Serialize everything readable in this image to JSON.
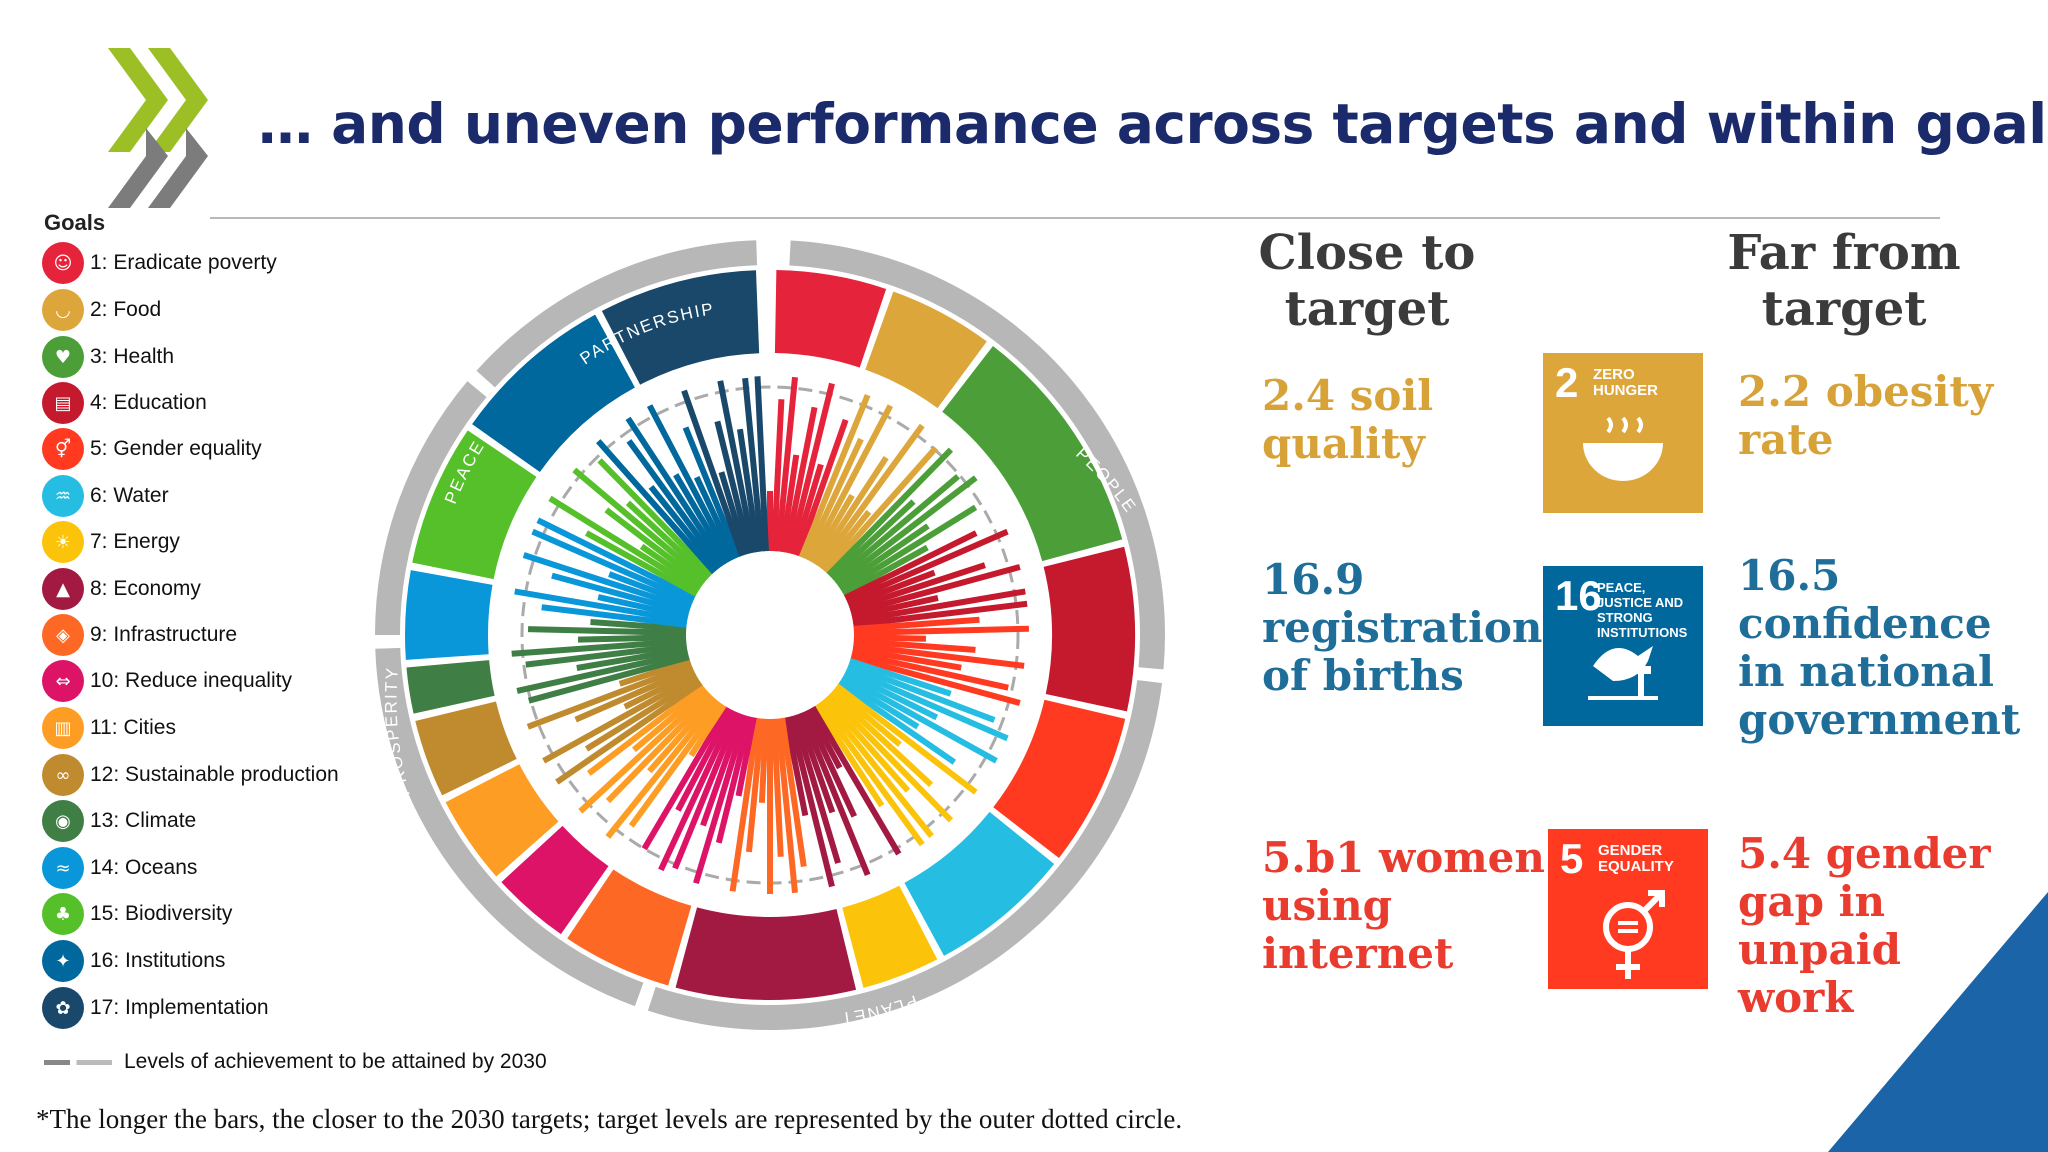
{
  "slide": {
    "title": "… and uneven performance across targets and within goals",
    "footnote": "*The longer the bars, the closer to the 2030 targets; target levels are represented by the outer dotted circle."
  },
  "legend": {
    "title": "Goals",
    "items": [
      {
        "label": "1: Eradicate poverty",
        "color": "#e5243b",
        "icon": "people-icon"
      },
      {
        "label": "2: Food",
        "color": "#dda63a",
        "icon": "bowl-icon"
      },
      {
        "label": "3: Health",
        "color": "#4c9f38",
        "icon": "heartbeat-icon"
      },
      {
        "label": "4: Education",
        "color": "#c5192d",
        "icon": "book-icon"
      },
      {
        "label": "5: Gender equality",
        "color": "#ff3a21",
        "icon": "gender-icon"
      },
      {
        "label": "6: Water",
        "color": "#26bde2",
        "icon": "water-icon"
      },
      {
        "label": "7: Energy",
        "color": "#fcc30b",
        "icon": "sun-icon"
      },
      {
        "label": "8: Economy",
        "color": "#a21942",
        "icon": "growth-chart-icon"
      },
      {
        "label": "9: Infrastructure",
        "color": "#fd6925",
        "icon": "cubes-icon"
      },
      {
        "label": "10: Reduce inequality",
        "color": "#dd1367",
        "icon": "arrows-icon"
      },
      {
        "label": "11: Cities",
        "color": "#fd9d24",
        "icon": "buildings-icon"
      },
      {
        "label": "12: Sustainable production",
        "color": "#bf8b2e",
        "icon": "infinity-icon"
      },
      {
        "label": "13: Climate",
        "color": "#3f7e44",
        "icon": "eye-globe-icon"
      },
      {
        "label": "14: Oceans",
        "color": "#0a97d9",
        "icon": "fish-icon"
      },
      {
        "label": "15: Biodiversity",
        "color": "#56c02b",
        "icon": "tree-icon"
      },
      {
        "label": "16: Institutions",
        "color": "#00689d",
        "icon": "dove-icon"
      },
      {
        "label": "17: Implementation",
        "color": "#19486a",
        "icon": "flower-icon"
      }
    ],
    "dashed_label": "Levels of achievement to be attained by 2030"
  },
  "wheel": {
    "ring_labels": [
      "PARTNERSHIP",
      "PEACE",
      "PEOPLE",
      "PROSPERITY",
      "PLANET"
    ]
  },
  "columns": {
    "close_heading": "Close to target",
    "far_heading": "Far from target"
  },
  "rows": [
    {
      "close": "2.4 soil quality",
      "far": "2.2 obesity rate",
      "tile_number": "2",
      "tile_caption": "Zero hunger",
      "tile_color": "#dda63a",
      "text_color": "#d7a238"
    },
    {
      "close": "16.9 registration of births",
      "far": "16.5 confidence in national government",
      "tile_number": "16",
      "tile_caption": "Peace, justice and strong institutions",
      "tile_color": "#00689d",
      "text_color": "#1f6e99"
    },
    {
      "close": "5.b1 women using internet",
      "far": "5.4 gender gap in unpaid work",
      "tile_number": "5",
      "tile_caption": "Gender equality",
      "tile_color": "#ff3a21",
      "text_color": "#ea3b2f"
    }
  ]
}
